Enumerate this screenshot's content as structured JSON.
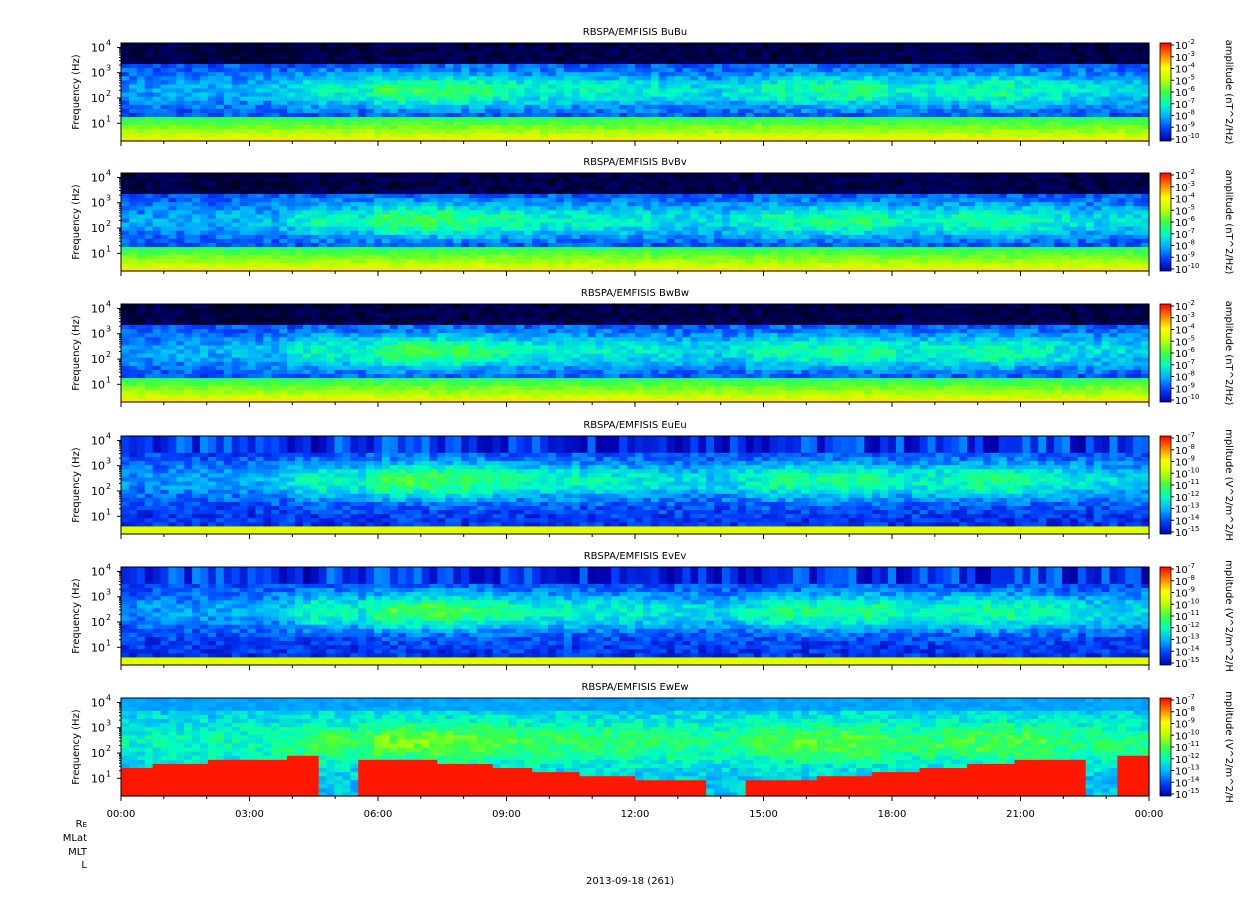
{
  "chart_data": [
    {
      "type": "heatmap",
      "title": "RBSPA/EMFISIS  BuBu",
      "ylabel": "Frequency (Hz)",
      "yscale": "log",
      "ylim": [
        2,
        15000
      ],
      "yticks": [
        {
          "value": 10,
          "exp": "1"
        },
        {
          "value": 100,
          "exp": "2"
        },
        {
          "value": 1000,
          "exp": "3"
        },
        {
          "value": 10000,
          "exp": "4"
        }
      ],
      "colorbar_label": "amplitude (nT^2/Hz)",
      "colorbar_exps": [
        "-2",
        "-3",
        "-4",
        "-5",
        "-6",
        "-7",
        "-8",
        "-9",
        "-10"
      ],
      "style": "B"
    },
    {
      "type": "heatmap",
      "title": "RBSPA/EMFISIS  BvBv",
      "ylabel": "Frequency (Hz)",
      "yscale": "log",
      "ylim": [
        2,
        15000
      ],
      "yticks": [
        {
          "value": 10,
          "exp": "1"
        },
        {
          "value": 100,
          "exp": "2"
        },
        {
          "value": 1000,
          "exp": "3"
        },
        {
          "value": 10000,
          "exp": "4"
        }
      ],
      "colorbar_label": "amplitude (nT^2/Hz)",
      "colorbar_exps": [
        "-2",
        "-3",
        "-4",
        "-5",
        "-6",
        "-7",
        "-8",
        "-9",
        "-10"
      ],
      "style": "B"
    },
    {
      "type": "heatmap",
      "title": "RBSPA/EMFISIS  BwBw",
      "ylabel": "Frequency (Hz)",
      "yscale": "log",
      "ylim": [
        2,
        15000
      ],
      "yticks": [
        {
          "value": 10,
          "exp": "1"
        },
        {
          "value": 100,
          "exp": "2"
        },
        {
          "value": 1000,
          "exp": "3"
        },
        {
          "value": 10000,
          "exp": "4"
        }
      ],
      "colorbar_label": "amplitude (nT^2/Hz)",
      "colorbar_exps": [
        "-2",
        "-3",
        "-4",
        "-5",
        "-6",
        "-7",
        "-8",
        "-9",
        "-10"
      ],
      "style": "B"
    },
    {
      "type": "heatmap",
      "title": "RBSPA/EMFISIS  EuEu",
      "ylabel": "Frequency (Hz)",
      "yscale": "log",
      "ylim": [
        2,
        15000
      ],
      "yticks": [
        {
          "value": 10,
          "exp": "1"
        },
        {
          "value": 100,
          "exp": "2"
        },
        {
          "value": 1000,
          "exp": "3"
        },
        {
          "value": 10000,
          "exp": "4"
        }
      ],
      "colorbar_label": "mplitude (V^2/m^2/H",
      "colorbar_exps": [
        "-7",
        "-8",
        "-9",
        "-10",
        "-11",
        "-12",
        "-13",
        "-14",
        "-15"
      ],
      "style": "E"
    },
    {
      "type": "heatmap",
      "title": "RBSPA/EMFISIS  EvEv",
      "ylabel": "Frequency (Hz)",
      "yscale": "log",
      "ylim": [
        2,
        15000
      ],
      "yticks": [
        {
          "value": 10,
          "exp": "1"
        },
        {
          "value": 100,
          "exp": "2"
        },
        {
          "value": 1000,
          "exp": "3"
        },
        {
          "value": 10000,
          "exp": "4"
        }
      ],
      "colorbar_label": "mplitude (V^2/m^2/H",
      "colorbar_exps": [
        "-7",
        "-8",
        "-9",
        "-10",
        "-11",
        "-12",
        "-13",
        "-14",
        "-15"
      ],
      "style": "E"
    },
    {
      "type": "heatmap",
      "title": "RBSPA/EMFISIS  EwEw",
      "ylabel": "Frequency (Hz)",
      "yscale": "log",
      "ylim": [
        2,
        15000
      ],
      "yticks": [
        {
          "value": 10,
          "exp": "1"
        },
        {
          "value": 100,
          "exp": "2"
        },
        {
          "value": 1000,
          "exp": "3"
        },
        {
          "value": 10000,
          "exp": "4"
        }
      ],
      "colorbar_label": "mplitude (V^2/m^2/H",
      "colorbar_exps": [
        "-7",
        "-8",
        "-9",
        "-10",
        "-11",
        "-12",
        "-13",
        "-14",
        "-15"
      ],
      "style": "Ew"
    }
  ],
  "x_axis": {
    "range_hours": [
      0,
      24
    ],
    "tick_labels": [
      "00:00",
      "03:00",
      "06:00",
      "09:00",
      "12:00",
      "15:00",
      "18:00",
      "21:00",
      "00:00"
    ],
    "date_label": "2013-09-18 (261)"
  },
  "ephemeris_labels": {
    "re_main": "R",
    "re_sub": "E",
    "mlat": "MLat",
    "mlt": "MLT",
    "l": "L"
  },
  "colors": {
    "scale": [
      "#000000",
      "#0000b0",
      "#0040ff",
      "#00b0ff",
      "#00ffc0",
      "#40ff40",
      "#c0ff00",
      "#ffff00",
      "#ff8000",
      "#ff0000"
    ]
  }
}
